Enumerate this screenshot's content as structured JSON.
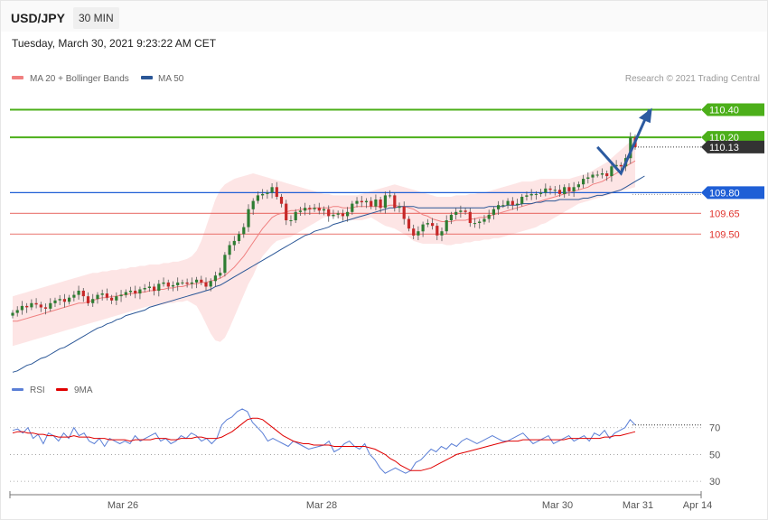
{
  "header": {
    "symbol": "USD/JPY",
    "timeframe": "30 MIN"
  },
  "timestamp": "Tuesday, March 30, 2021 9:23:22 AM CET",
  "legend": {
    "ma20": {
      "label": "MA 20 + Bollinger Bands",
      "color": "#f08080"
    },
    "ma50": {
      "label": "MA 50",
      "color": "#2b5797"
    },
    "copyright": "Research © 2021 Trading Central"
  },
  "rsi_legend": {
    "rsi": {
      "label": "RSI",
      "color": "#5b7fd6"
    },
    "ma9": {
      "label": "9MA",
      "color": "#e00000"
    }
  },
  "chart_data": [
    {
      "type": "candlestick",
      "x_ticks": [
        "Mar 26",
        "Mar 28",
        "Mar 30",
        "Mar 31",
        "Apr 14"
      ],
      "ylim": [
        108.45,
        110.58
      ],
      "levels": [
        {
          "value": 110.4,
          "label": "110.40",
          "kind": "resistance",
          "color": "#4caf1a"
        },
        {
          "value": 110.2,
          "label": "110.20",
          "kind": "resistance",
          "color": "#4caf1a"
        },
        {
          "value": 110.13,
          "label": "110.13",
          "kind": "last-price",
          "color": "#333333"
        },
        {
          "value": 109.8,
          "label": "109.80",
          "kind": "pivot",
          "color": "#1f5fd6"
        },
        {
          "value": 109.65,
          "label": "109.65",
          "kind": "support",
          "color": "#e0332c"
        },
        {
          "value": 109.5,
          "label": "109.50",
          "kind": "support",
          "color": "#e0332c"
        }
      ],
      "close_series": [
        108.93,
        108.95,
        108.98,
        108.97,
        109.0,
        108.99,
        108.97,
        108.96,
        109.0,
        109.02,
        109.03,
        109.01,
        109.04,
        109.06,
        109.09,
        109.05,
        109.0,
        109.03,
        109.06,
        109.07,
        109.04,
        109.02,
        109.05,
        109.06,
        109.08,
        109.09,
        109.07,
        109.1,
        109.11,
        109.12,
        109.09,
        109.14,
        109.15,
        109.12,
        109.13,
        109.15,
        109.15,
        109.14,
        109.15,
        109.17,
        109.15,
        109.12,
        109.16,
        109.2,
        109.22,
        109.35,
        109.42,
        109.45,
        109.5,
        109.55,
        109.68,
        109.74,
        109.78,
        109.79,
        109.8,
        109.84,
        109.77,
        109.72,
        109.6,
        109.6,
        109.66,
        109.67,
        109.69,
        109.68,
        109.69,
        109.67,
        109.68,
        109.63,
        109.64,
        109.65,
        109.63,
        109.66,
        109.72,
        109.74,
        109.73,
        109.74,
        109.7,
        109.75,
        109.69,
        109.78,
        109.78,
        109.69,
        109.7,
        109.61,
        109.54,
        109.49,
        109.52,
        109.57,
        109.58,
        109.56,
        109.49,
        109.52,
        109.6,
        109.64,
        109.66,
        109.67,
        109.66,
        109.58,
        109.58,
        109.59,
        109.61,
        109.64,
        109.68,
        109.71,
        109.71,
        109.74,
        109.71,
        109.72,
        109.77,
        109.78,
        109.79,
        109.79,
        109.8,
        109.83,
        109.82,
        109.82,
        109.79,
        109.84,
        109.81,
        109.84,
        109.86,
        109.9,
        109.91,
        109.93,
        109.93,
        109.94,
        109.92,
        109.99,
        110.0,
        109.99,
        110.05,
        110.2,
        110.13
      ],
      "ma20_series": [
        108.87,
        108.87,
        108.88,
        108.89,
        108.9,
        108.91,
        108.92,
        108.93,
        108.94,
        108.95,
        108.96,
        108.97,
        108.98,
        108.99,
        109.0,
        109.0,
        109.01,
        109.02,
        109.03,
        109.04,
        109.04,
        109.05,
        109.05,
        109.06,
        109.06,
        109.07,
        109.07,
        109.08,
        109.08,
        109.09,
        109.09,
        109.1,
        109.1,
        109.11,
        109.11,
        109.12,
        109.12,
        109.13,
        109.14,
        109.14,
        109.15,
        109.15,
        109.16,
        109.17,
        109.18,
        109.2,
        109.23,
        109.26,
        109.3,
        109.34,
        109.39,
        109.44,
        109.49,
        109.54,
        109.58,
        109.62,
        109.64,
        109.65,
        109.66,
        109.67,
        109.67,
        109.68,
        109.68,
        109.68,
        109.69,
        109.69,
        109.69,
        109.69,
        109.7,
        109.7,
        109.69,
        109.69,
        109.69,
        109.7,
        109.7,
        109.7,
        109.7,
        109.7,
        109.7,
        109.7,
        109.71,
        109.71,
        109.7,
        109.7,
        109.69,
        109.68,
        109.66,
        109.64,
        109.63,
        109.61,
        109.6,
        109.59,
        109.59,
        109.59,
        109.6,
        109.6,
        109.6,
        109.61,
        109.61,
        109.62,
        109.62,
        109.63,
        109.64,
        109.65,
        109.66,
        109.67,
        109.68,
        109.69,
        109.7,
        109.71,
        109.72,
        109.73,
        109.74,
        109.75,
        109.76,
        109.77,
        109.78,
        109.79,
        109.8,
        109.81,
        109.82,
        109.83,
        109.84,
        109.86,
        109.87,
        109.88,
        109.9,
        109.92,
        109.94,
        109.96,
        109.99,
        110.01,
        110.03
      ],
      "ma50_series": [
        108.5,
        108.51,
        108.53,
        108.55,
        108.56,
        108.58,
        108.6,
        108.61,
        108.63,
        108.65,
        108.67,
        108.68,
        108.7,
        108.72,
        108.74,
        108.76,
        108.78,
        108.8,
        108.82,
        108.83,
        108.85,
        108.86,
        108.88,
        108.89,
        108.91,
        108.92,
        108.93,
        108.94,
        108.95,
        108.97,
        108.98,
        108.99,
        109.0,
        109.01,
        109.02,
        109.03,
        109.04,
        109.05,
        109.06,
        109.07,
        109.08,
        109.09,
        109.1,
        109.12,
        109.13,
        109.15,
        109.17,
        109.19,
        109.21,
        109.23,
        109.25,
        109.27,
        109.29,
        109.31,
        109.33,
        109.35,
        109.37,
        109.39,
        109.41,
        109.43,
        109.45,
        109.47,
        109.49,
        109.5,
        109.52,
        109.53,
        109.54,
        109.55,
        109.57,
        109.58,
        109.59,
        109.6,
        109.61,
        109.62,
        109.63,
        109.64,
        109.65,
        109.66,
        109.67,
        109.68,
        109.69,
        109.69,
        109.7,
        109.7,
        109.7,
        109.7,
        109.69,
        109.69,
        109.69,
        109.69,
        109.69,
        109.69,
        109.69,
        109.69,
        109.69,
        109.69,
        109.69,
        109.69,
        109.69,
        109.69,
        109.69,
        109.7,
        109.7,
        109.7,
        109.7,
        109.71,
        109.71,
        109.71,
        109.72,
        109.72,
        109.72,
        109.73,
        109.73,
        109.74,
        109.74,
        109.74,
        109.75,
        109.75,
        109.75,
        109.75,
        109.75,
        109.76,
        109.76,
        109.77,
        109.78,
        109.78,
        109.79,
        109.8,
        109.81,
        109.82,
        109.84,
        109.86,
        109.88,
        109.9,
        109.92
      ],
      "bb_upper": [
        109.05,
        109.06,
        109.07,
        109.08,
        109.09,
        109.1,
        109.11,
        109.12,
        109.13,
        109.14,
        109.15,
        109.16,
        109.17,
        109.18,
        109.19,
        109.2,
        109.21,
        109.22,
        109.22,
        109.23,
        109.23,
        109.24,
        109.24,
        109.25,
        109.25,
        109.26,
        109.26,
        109.27,
        109.27,
        109.28,
        109.28,
        109.28,
        109.29,
        109.29,
        109.3,
        109.3,
        109.31,
        109.32,
        109.34,
        109.38,
        109.45,
        109.55,
        109.65,
        109.75,
        109.82,
        109.86,
        109.88,
        109.9,
        109.91,
        109.92,
        109.93,
        109.94,
        109.93,
        109.92,
        109.91,
        109.9,
        109.89,
        109.88,
        109.87,
        109.86,
        109.85,
        109.84,
        109.83,
        109.82,
        109.81,
        109.8,
        109.79,
        109.79,
        109.78,
        109.78,
        109.78,
        109.78,
        109.78,
        109.78,
        109.79,
        109.8,
        109.81,
        109.82,
        109.83,
        109.84,
        109.85,
        109.86,
        109.85,
        109.84,
        109.83,
        109.82,
        109.81,
        109.8,
        109.79,
        109.78,
        109.77,
        109.77,
        109.77,
        109.77,
        109.78,
        109.78,
        109.78,
        109.79,
        109.79,
        109.8,
        109.8,
        109.81,
        109.82,
        109.83,
        109.84,
        109.85,
        109.86,
        109.87,
        109.88,
        109.88,
        109.88,
        109.89,
        109.9,
        109.9,
        109.9,
        109.9,
        109.9,
        109.9,
        109.9,
        109.91,
        109.92,
        109.93,
        109.94,
        109.96,
        109.98,
        110.0,
        110.02,
        110.05,
        110.08,
        110.11,
        110.14,
        110.17,
        110.2,
        110.23,
        110.26
      ],
      "bb_lower": [
        108.69,
        108.7,
        108.71,
        108.72,
        108.73,
        108.74,
        108.75,
        108.76,
        108.77,
        108.78,
        108.79,
        108.8,
        108.81,
        108.82,
        108.83,
        108.84,
        108.85,
        108.86,
        108.87,
        108.88,
        108.89,
        108.9,
        108.91,
        108.92,
        108.93,
        108.94,
        108.95,
        108.96,
        108.97,
        108.98,
        108.98,
        108.99,
        108.99,
        109.0,
        109.0,
        109.01,
        109.01,
        109.02,
        109.0,
        108.98,
        108.92,
        108.85,
        108.78,
        108.73,
        108.72,
        108.75,
        108.82,
        108.9,
        108.98,
        109.06,
        109.14,
        109.2,
        109.28,
        109.34,
        109.38,
        109.42,
        109.45,
        109.46,
        109.47,
        109.48,
        109.5,
        109.52,
        109.54,
        109.56,
        109.58,
        109.6,
        109.62,
        109.63,
        109.63,
        109.62,
        109.6,
        109.6,
        109.6,
        109.6,
        109.6,
        109.61,
        109.62,
        109.6,
        109.58,
        109.56,
        109.55,
        109.54,
        109.52,
        109.5,
        109.48,
        109.45,
        109.44,
        109.43,
        109.43,
        109.43,
        109.43,
        109.43,
        109.42,
        109.42,
        109.43,
        109.43,
        109.44,
        109.44,
        109.45,
        109.45,
        109.46,
        109.46,
        109.47,
        109.47,
        109.48,
        109.49,
        109.5,
        109.51,
        109.52,
        109.53,
        109.54,
        109.55,
        109.57,
        109.58,
        109.6,
        109.62,
        109.64,
        109.66,
        109.68,
        109.7,
        109.72,
        109.73,
        109.74,
        109.75,
        109.76,
        109.77,
        109.78,
        109.79,
        109.8,
        109.81,
        109.82,
        109.83,
        109.84,
        109.85,
        109.86
      ]
    },
    {
      "type": "line",
      "name": "RSI",
      "yticks": [
        70,
        50,
        30
      ],
      "ylim": [
        20,
        90
      ],
      "rsi_series": [
        68,
        69,
        66,
        70,
        62,
        65,
        58,
        66,
        64,
        60,
        66,
        62,
        70,
        64,
        66,
        60,
        58,
        62,
        56,
        62,
        60,
        58,
        60,
        58,
        64,
        60,
        62,
        64,
        66,
        60,
        62,
        58,
        60,
        64,
        62,
        66,
        64,
        60,
        62,
        58,
        62,
        72,
        76,
        78,
        82,
        84,
        82,
        74,
        70,
        66,
        60,
        62,
        60,
        58,
        56,
        60,
        58,
        56,
        54,
        55,
        56,
        57,
        60,
        52,
        54,
        58,
        60,
        56,
        54,
        58,
        50,
        46,
        40,
        36,
        38,
        40,
        38,
        36,
        38,
        44,
        46,
        50,
        54,
        52,
        56,
        54,
        58,
        56,
        60,
        62,
        60,
        58,
        60,
        62,
        64,
        62,
        60,
        60,
        62,
        64,
        66,
        62,
        58,
        60,
        62,
        64,
        58,
        60,
        62,
        64,
        60,
        62,
        64,
        60,
        66,
        64,
        68,
        62,
        66,
        68,
        70,
        76,
        72
      ],
      "ma9_series": [
        66,
        67,
        67,
        66,
        66,
        65,
        65,
        64,
        64,
        63,
        63,
        63,
        64,
        63,
        63,
        63,
        62,
        62,
        62,
        61,
        61,
        61,
        61,
        60,
        61,
        61,
        61,
        61,
        62,
        62,
        62,
        61,
        61,
        62,
        62,
        62,
        63,
        63,
        62,
        62,
        62,
        63,
        65,
        67,
        70,
        73,
        76,
        77,
        77,
        76,
        73,
        70,
        67,
        64,
        62,
        60,
        59,
        58,
        58,
        57,
        57,
        57,
        57,
        56,
        56,
        56,
        56,
        56,
        56,
        56,
        55,
        54,
        52,
        50,
        47,
        45,
        42,
        40,
        38,
        38,
        38,
        39,
        40,
        42,
        44,
        46,
        48,
        50,
        51,
        52,
        53,
        54,
        55,
        56,
        57,
        58,
        59,
        60,
        60,
        60,
        61,
        61,
        61,
        61,
        61,
        61,
        61,
        61,
        61,
        62,
        62,
        62,
        62,
        62,
        62,
        62,
        63,
        63,
        64,
        64,
        65,
        66,
        67
      ]
    }
  ],
  "forecast_path": [
    {
      "x_index": 124,
      "value": 110.13
    },
    {
      "x_index": 129,
      "value": 109.94
    },
    {
      "x_index": 135,
      "value": 110.4
    }
  ]
}
